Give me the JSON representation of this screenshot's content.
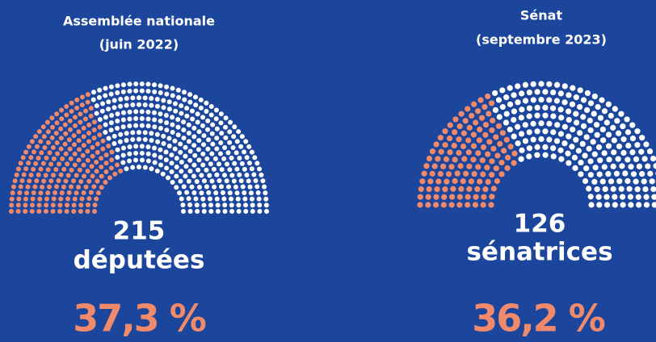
{
  "chart_data": [
    {
      "type": "parliament",
      "title": "Assemblée nationale",
      "subtitle": "(juin 2022)",
      "values": [
        215,
        362
      ],
      "colors": [
        "#f08a6b",
        "#ffffff"
      ],
      "label": "députées",
      "percent_label": "37,3 %"
    },
    {
      "type": "parliament",
      "title": "Sénat",
      "subtitle": "(septembre 2023)",
      "values": [
        126,
        222
      ],
      "colors": [
        "#f08a6b",
        "#ffffff"
      ],
      "label": "sénatrices",
      "percent_label": "36,2 %"
    }
  ]
}
